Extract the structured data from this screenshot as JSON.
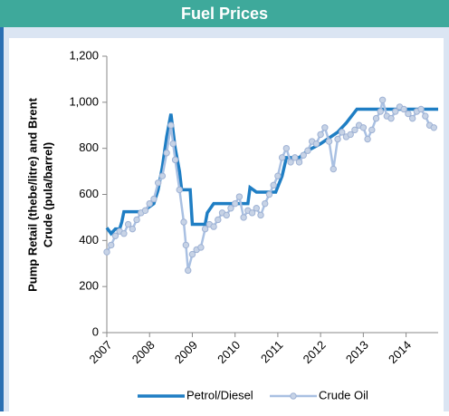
{
  "header": {
    "title": "Fuel Prices"
  },
  "chart_data": {
    "type": "line",
    "ylabel": [
      "Pump Retail (thebe/litre) and Brent",
      "Crude (pula/barrel)"
    ],
    "xlim": [
      2007,
      2014.75
    ],
    "xticks": [
      2007,
      2008,
      2009,
      2010,
      2011,
      2012,
      2013,
      2014
    ],
    "ylim": [
      0,
      1200
    ],
    "yticks": [
      0,
      200,
      400,
      600,
      800,
      {
        "value": 1000,
        "label": "1,000"
      },
      {
        "value": 1200,
        "label": "1,200"
      }
    ],
    "series": [
      {
        "name": "Petrol/Diesel",
        "color": "#1f7ec4",
        "markers": false,
        "x": [
          2007,
          2007.1,
          2007.2,
          2007.3,
          2007.35,
          2007.4,
          2007.9,
          2007.95,
          2008.1,
          2008.2,
          2008.3,
          2008.4,
          2008.5,
          2008.6,
          2008.7,
          2008.75,
          2008.95,
          2009,
          2009.3,
          2009.35,
          2009.5,
          2010.3,
          2010.35,
          2010.5,
          2010.95,
          2011.1,
          2011.2,
          2011.5,
          2011.7,
          2012,
          2012.4,
          2012.6,
          2012.85,
          2014.75
        ],
        "values": [
          455,
          430,
          450,
          450,
          480,
          525,
          525,
          540,
          560,
          620,
          720,
          850,
          950,
          800,
          700,
          620,
          620,
          470,
          470,
          520,
          560,
          560,
          630,
          610,
          610,
          680,
          760,
          760,
          790,
          820,
          870,
          910,
          970,
          970
        ]
      },
      {
        "name": "Crude Oil",
        "color": "#a9c0e2",
        "markers": true,
        "x": [
          2007,
          2007.1,
          2007.2,
          2007.3,
          2007.4,
          2007.5,
          2007.6,
          2007.7,
          2007.8,
          2007.9,
          2008,
          2008.1,
          2008.2,
          2008.3,
          2008.4,
          2008.5,
          2008.55,
          2008.6,
          2008.7,
          2008.8,
          2008.85,
          2008.9,
          2009,
          2009.1,
          2009.2,
          2009.3,
          2009.4,
          2009.5,
          2009.6,
          2009.7,
          2009.8,
          2009.9,
          2010,
          2010.1,
          2010.2,
          2010.3,
          2010.4,
          2010.5,
          2010.6,
          2010.7,
          2010.8,
          2010.9,
          2011,
          2011.1,
          2011.2,
          2011.3,
          2011.4,
          2011.5,
          2011.6,
          2011.7,
          2011.8,
          2011.9,
          2012,
          2012.1,
          2012.2,
          2012.3,
          2012.4,
          2012.5,
          2012.6,
          2012.7,
          2012.8,
          2012.9,
          2013,
          2013.1,
          2013.2,
          2013.3,
          2013.4,
          2013.45,
          2013.55,
          2013.65,
          2013.75,
          2013.85,
          2013.95,
          2014.05,
          2014.15,
          2014.25,
          2014.35,
          2014.45,
          2014.55,
          2014.65
        ],
        "values": [
          350,
          380,
          420,
          440,
          430,
          470,
          450,
          490,
          520,
          530,
          560,
          580,
          650,
          680,
          780,
          900,
          820,
          750,
          620,
          480,
          380,
          270,
          340,
          360,
          370,
          450,
          470,
          460,
          490,
          520,
          510,
          540,
          560,
          590,
          500,
          530,
          520,
          540,
          510,
          560,
          600,
          640,
          680,
          760,
          800,
          740,
          760,
          740,
          770,
          790,
          830,
          820,
          860,
          890,
          830,
          710,
          840,
          870,
          850,
          860,
          880,
          900,
          890,
          840,
          880,
          930,
          960,
          1010,
          940,
          930,
          960,
          980,
          970,
          950,
          930,
          960,
          970,
          940,
          900,
          890
        ]
      }
    ]
  }
}
